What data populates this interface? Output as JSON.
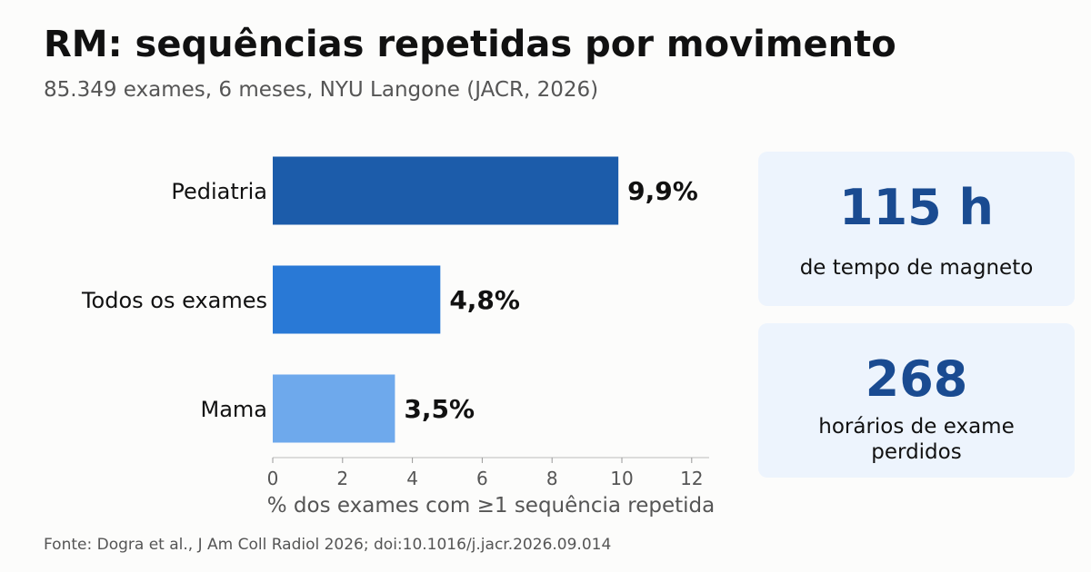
{
  "header": {
    "title": "RM: sequências repetidas por movimento",
    "subtitle": "85.349 exames, 6 meses, NYU Langone (JACR, 2026)"
  },
  "chart_data": {
    "type": "bar",
    "orientation": "horizontal",
    "categories": [
      "Pediatria",
      "Todos os exames",
      "Mama"
    ],
    "values": [
      9.9,
      4.8,
      3.5
    ],
    "value_labels": [
      "9,9%",
      "4,8%",
      "3,5%"
    ],
    "xlabel": "% dos exames com ≥1 sequência repetida",
    "ylabel": "",
    "xlim": [
      0,
      12.5
    ],
    "xticks": [
      0,
      2,
      4,
      6,
      8,
      10,
      12
    ],
    "grid": false,
    "bar_colors": [
      "#1c5caa",
      "#2979d6",
      "#6ea9ec"
    ]
  },
  "stats": [
    {
      "value": "115 h",
      "label": "de tempo de magneto"
    },
    {
      "value": "268",
      "label": "horários de exame perdidos"
    }
  ],
  "colors": {
    "accent": "#1a4b91",
    "card_bg": "#edf4fd"
  },
  "footer": {
    "source": "Fonte: Dogra et al., J Am Coll Radiol 2026; doi:10.1016/j.jacr.2026.09.014"
  }
}
